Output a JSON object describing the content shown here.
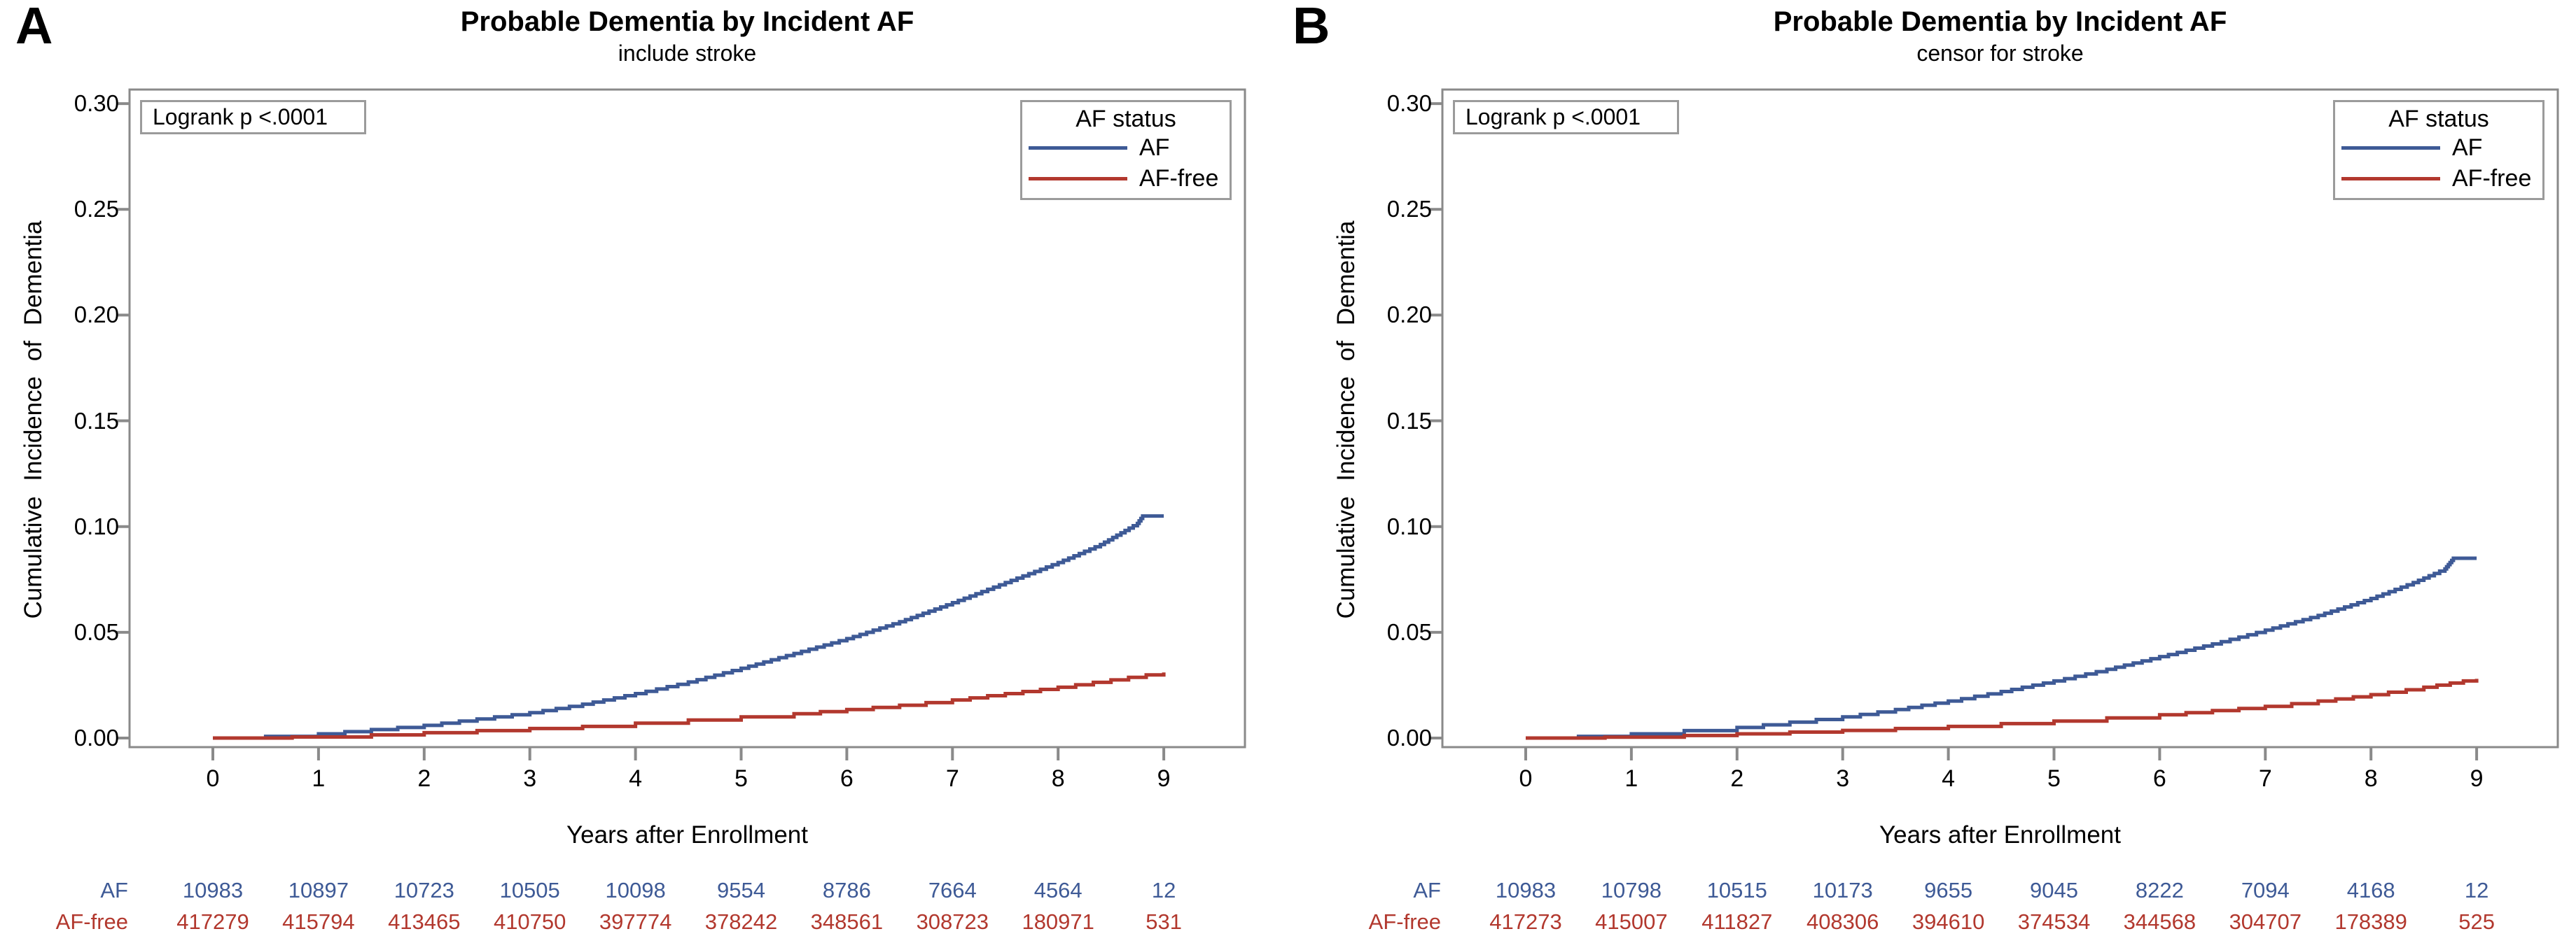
{
  "figure": {
    "panels": [
      {
        "panel_label": "A",
        "title": "Probable Dementia by Incident AF",
        "subtitle": "include stroke",
        "logrank": "Logrank p <.0001",
        "legend": {
          "title": "AF status",
          "entries": [
            {
              "label": "AF",
              "color": "#3E5A96"
            },
            {
              "label": "AF-free",
              "color": "#B2382E"
            }
          ]
        },
        "x_axis": {
          "label": "Years after Enrollment"
        },
        "y_axis": {
          "label": "Cumulative Incidence of Dementia"
        }
      },
      {
        "panel_label": "B",
        "title": "Probable Dementia by Incident AF",
        "subtitle": "censor for stroke",
        "logrank": "Logrank p <.0001",
        "legend": {
          "title": "AF status",
          "entries": [
            {
              "label": "AF",
              "color": "#3E5A96"
            },
            {
              "label": "AF-free",
              "color": "#B2382E"
            }
          ]
        },
        "x_axis": {
          "label": "Years after Enrollment"
        },
        "y_axis": {
          "label": "Cumulative Incidence of Dementia"
        }
      }
    ]
  },
  "chart_data": [
    {
      "type": "line",
      "step": true,
      "title": "Probable Dementia by Incident AF",
      "subtitle": "include stroke",
      "xlabel": "Years after Enrollment",
      "ylabel": "Cumulative Incidence of Dementia",
      "annotation": "Logrank p <.0001",
      "legend_title": "AF status",
      "legend_position": "top-right-inside",
      "grid": false,
      "xlim": [
        -0.79,
        9.77
      ],
      "ylim": [
        -0.0043,
        0.3066
      ],
      "xticks": [
        0,
        1,
        2,
        3,
        4,
        5,
        6,
        7,
        8,
        9
      ],
      "yticks": [
        0.0,
        0.05,
        0.1,
        0.15,
        0.2,
        0.25,
        0.3
      ],
      "axis_color": "#8A8A8A",
      "series": [
        {
          "name": "AF",
          "color": "#3E5A96",
          "x": [
            0,
            0.5,
            1,
            1.5,
            2,
            2.5,
            3,
            3.5,
            4,
            4.5,
            5,
            5.5,
            6,
            6.5,
            7,
            7.5,
            8,
            8.4,
            8.75,
            8.8,
            9
          ],
          "y": [
            0,
            0.0008,
            0.002,
            0.004,
            0.006,
            0.009,
            0.012,
            0.016,
            0.021,
            0.0265,
            0.033,
            0.04,
            0.047,
            0.055,
            0.064,
            0.0735,
            0.083,
            0.0915,
            0.1015,
            0.105,
            0.105
          ]
        },
        {
          "name": "AF-free",
          "color": "#B2382E",
          "x": [
            0,
            0.75,
            1.5,
            2,
            2.5,
            3,
            3.5,
            4,
            4.5,
            5,
            5.5,
            6,
            6.5,
            7,
            7.5,
            8,
            8.5,
            9
          ],
          "y": [
            0,
            0.0005,
            0.0015,
            0.0025,
            0.0035,
            0.0045,
            0.0055,
            0.007,
            0.0085,
            0.01,
            0.0115,
            0.0135,
            0.0155,
            0.018,
            0.021,
            0.024,
            0.0275,
            0.031
          ]
        }
      ],
      "at_risk": {
        "times": [
          0,
          1,
          2,
          3,
          4,
          5,
          6,
          7,
          8,
          9
        ],
        "rows": [
          {
            "label": "AF",
            "color": "#3E5A96",
            "values": [
              10983,
              10897,
              10723,
              10505,
              10098,
              9554,
              8786,
              7664,
              4564,
              12
            ]
          },
          {
            "label": "AF-free",
            "color": "#B2382E",
            "values": [
              417279,
              415794,
              413465,
              410750,
              397774,
              378242,
              348561,
              308723,
              180971,
              531
            ]
          }
        ]
      }
    },
    {
      "type": "line",
      "step": true,
      "title": "Probable Dementia by Incident AF",
      "subtitle": "censor for stroke",
      "xlabel": "Years after Enrollment",
      "ylabel": "Cumulative Incidence of Dementia",
      "annotation": "Logrank p <.0001",
      "legend_title": "AF status",
      "legend_position": "top-right-inside",
      "grid": false,
      "xlim": [
        -0.79,
        9.77
      ],
      "ylim": [
        -0.0043,
        0.3066
      ],
      "xticks": [
        0,
        1,
        2,
        3,
        4,
        5,
        6,
        7,
        8,
        9
      ],
      "yticks": [
        0.0,
        0.05,
        0.1,
        0.15,
        0.2,
        0.25,
        0.3
      ],
      "axis_color": "#8A8A8A",
      "series": [
        {
          "name": "AF",
          "color": "#3E5A96",
          "x": [
            0,
            0.5,
            1,
            1.5,
            2,
            2.5,
            3,
            3.5,
            4,
            4.5,
            5,
            5.5,
            6,
            6.5,
            7,
            7.5,
            8,
            8.4,
            8.7,
            8.78,
            9
          ],
          "y": [
            0,
            0.0008,
            0.002,
            0.0035,
            0.005,
            0.0075,
            0.01,
            0.0135,
            0.0175,
            0.022,
            0.027,
            0.0325,
            0.0385,
            0.0445,
            0.051,
            0.058,
            0.066,
            0.0735,
            0.08,
            0.085,
            0.085
          ]
        },
        {
          "name": "AF-free",
          "color": "#B2382E",
          "x": [
            0,
            0.75,
            1.5,
            2,
            2.5,
            3,
            3.5,
            4,
            4.5,
            5,
            5.5,
            6,
            6.5,
            7,
            7.5,
            8,
            8.5,
            9
          ],
          "y": [
            0,
            0.0004,
            0.0012,
            0.002,
            0.0028,
            0.0036,
            0.0045,
            0.0055,
            0.0068,
            0.008,
            0.0095,
            0.011,
            0.013,
            0.015,
            0.0175,
            0.0205,
            0.024,
            0.028
          ]
        }
      ],
      "at_risk": {
        "times": [
          0,
          1,
          2,
          3,
          4,
          5,
          6,
          7,
          8,
          9
        ],
        "rows": [
          {
            "label": "AF",
            "color": "#3E5A96",
            "values": [
              10983,
              10798,
              10515,
              10173,
              9655,
              9045,
              8222,
              7094,
              4168,
              12
            ]
          },
          {
            "label": "AF-free",
            "color": "#B2382E",
            "values": [
              417273,
              415007,
              411827,
              408306,
              394610,
              374534,
              344568,
              304707,
              178389,
              525
            ]
          }
        ]
      }
    }
  ]
}
